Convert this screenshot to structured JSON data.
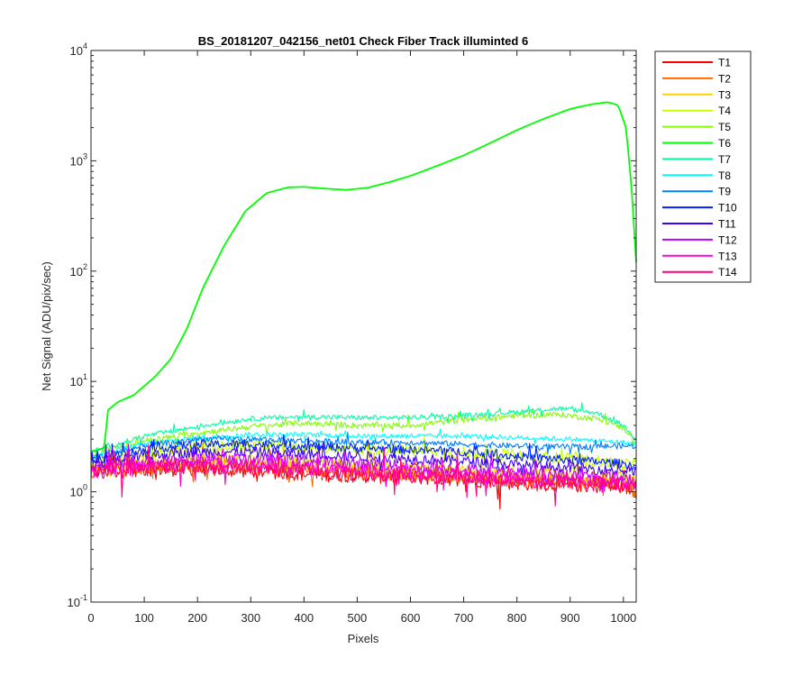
{
  "chart_data": {
    "type": "line",
    "title": "BS_20181207_042156_net01    Check Fiber      Track illuminted 6",
    "xlabel": "Pixels",
    "ylabel": "Net Signal (ADU/pix/sec)",
    "xlim": [
      0,
      1024
    ],
    "ylim": [
      0.1,
      10000
    ],
    "yscale": "log",
    "grid": false,
    "legend_position": "outside-right",
    "x_ticks": [
      0,
      100,
      200,
      300,
      400,
      500,
      600,
      700,
      800,
      900,
      1000
    ],
    "x_tick_labels": [
      "0",
      "100",
      "200",
      "300",
      "400",
      "500",
      "600",
      "700",
      "800",
      "900",
      "1000"
    ],
    "y_ticks": [
      0.1,
      1,
      10,
      100,
      1000,
      10000
    ],
    "y_tick_labels": [
      {
        "base": "10",
        "exp": "-1"
      },
      {
        "base": "10",
        "exp": "0"
      },
      {
        "base": "10",
        "exp": "1"
      },
      {
        "base": "10",
        "exp": "2"
      },
      {
        "base": "10",
        "exp": "3"
      },
      {
        "base": "10",
        "exp": "4"
      }
    ],
    "series": [
      {
        "name": "T1",
        "color": "#ff0000",
        "noise": 0.3,
        "points": [
          [
            0,
            1.5
          ],
          [
            100,
            1.6
          ],
          [
            200,
            1.6
          ],
          [
            300,
            1.55
          ],
          [
            400,
            1.45
          ],
          [
            500,
            1.4
          ],
          [
            600,
            1.35
          ],
          [
            700,
            1.3
          ],
          [
            800,
            1.2
          ],
          [
            900,
            1.15
          ],
          [
            1000,
            1.1
          ],
          [
            1024,
            1.0
          ]
        ]
      },
      {
        "name": "T2",
        "color": "#ff6a00",
        "noise": 0.3,
        "points": [
          [
            0,
            1.55
          ],
          [
            100,
            1.7
          ],
          [
            200,
            1.75
          ],
          [
            300,
            1.7
          ],
          [
            400,
            1.6
          ],
          [
            500,
            1.5
          ],
          [
            600,
            1.45
          ],
          [
            700,
            1.4
          ],
          [
            800,
            1.3
          ],
          [
            900,
            1.25
          ],
          [
            1000,
            1.2
          ],
          [
            1024,
            1.0
          ]
        ]
      },
      {
        "name": "T3",
        "color": "#ffd000",
        "noise": 0.28,
        "points": [
          [
            0,
            1.65
          ],
          [
            100,
            1.85
          ],
          [
            200,
            1.95
          ],
          [
            300,
            1.9
          ],
          [
            400,
            1.8
          ],
          [
            500,
            1.7
          ],
          [
            600,
            1.6
          ],
          [
            700,
            1.55
          ],
          [
            800,
            1.45
          ],
          [
            900,
            1.4
          ],
          [
            1000,
            1.35
          ],
          [
            1024,
            1.3
          ]
        ]
      },
      {
        "name": "T4",
        "color": "#c8ff00",
        "noise": 0.25,
        "points": [
          [
            0,
            1.8
          ],
          [
            100,
            2.2
          ],
          [
            200,
            2.5
          ],
          [
            300,
            2.6
          ],
          [
            400,
            2.55
          ],
          [
            500,
            2.45
          ],
          [
            600,
            2.35
          ],
          [
            700,
            2.25
          ],
          [
            800,
            2.15
          ],
          [
            900,
            2.0
          ],
          [
            1000,
            1.8
          ],
          [
            1024,
            1.75
          ]
        ]
      },
      {
        "name": "T5",
        "color": "#7fff00",
        "noise": 0.12,
        "points": [
          [
            0,
            2.2
          ],
          [
            100,
            2.9
          ],
          [
            200,
            3.4
          ],
          [
            300,
            3.9
          ],
          [
            400,
            4.2
          ],
          [
            500,
            4.0
          ],
          [
            600,
            4.0
          ],
          [
            700,
            4.5
          ],
          [
            800,
            4.9
          ],
          [
            880,
            5.0
          ],
          [
            950,
            4.6
          ],
          [
            1000,
            3.8
          ],
          [
            1024,
            2.9
          ]
        ]
      },
      {
        "name": "T6",
        "color": "#00ff00",
        "noise": 0.0,
        "points": [
          [
            0,
            2.3
          ],
          [
            25,
            2.5
          ],
          [
            32,
            5.5
          ],
          [
            50,
            6.5
          ],
          [
            80,
            7.5
          ],
          [
            120,
            11
          ],
          [
            150,
            16
          ],
          [
            180,
            30
          ],
          [
            210,
            70
          ],
          [
            250,
            170
          ],
          [
            290,
            350
          ],
          [
            330,
            510
          ],
          [
            370,
            575
          ],
          [
            400,
            580
          ],
          [
            440,
            560
          ],
          [
            480,
            545
          ],
          [
            520,
            570
          ],
          [
            560,
            640
          ],
          [
            600,
            730
          ],
          [
            650,
            900
          ],
          [
            700,
            1120
          ],
          [
            750,
            1450
          ],
          [
            800,
            1900
          ],
          [
            850,
            2400
          ],
          [
            900,
            2950
          ],
          [
            940,
            3250
          ],
          [
            970,
            3400
          ],
          [
            990,
            3200
          ],
          [
            1005,
            2000
          ],
          [
            1015,
            600
          ],
          [
            1024,
            120
          ]
        ]
      },
      {
        "name": "T7",
        "color": "#00ffa0",
        "noise": 0.1,
        "points": [
          [
            0,
            2.3
          ],
          [
            100,
            3.2
          ],
          [
            200,
            3.9
          ],
          [
            300,
            4.6
          ],
          [
            400,
            4.8
          ],
          [
            500,
            4.7
          ],
          [
            600,
            4.7
          ],
          [
            700,
            4.9
          ],
          [
            800,
            5.3
          ],
          [
            880,
            5.7
          ],
          [
            950,
            5.2
          ],
          [
            1000,
            4.0
          ],
          [
            1024,
            3.0
          ]
        ]
      },
      {
        "name": "T8",
        "color": "#00ffff",
        "noise": 0.1,
        "points": [
          [
            0,
            2.1
          ],
          [
            100,
            2.7
          ],
          [
            200,
            3.1
          ],
          [
            300,
            3.3
          ],
          [
            400,
            3.3
          ],
          [
            500,
            3.2
          ],
          [
            600,
            3.2
          ],
          [
            700,
            3.2
          ],
          [
            800,
            3.1
          ],
          [
            900,
            3.0
          ],
          [
            1000,
            2.8
          ],
          [
            1024,
            2.7
          ]
        ]
      },
      {
        "name": "T9",
        "color": "#0080ff",
        "noise": 0.12,
        "points": [
          [
            0,
            2.0
          ],
          [
            100,
            2.6
          ],
          [
            200,
            3.0
          ],
          [
            300,
            3.0
          ],
          [
            400,
            2.9
          ],
          [
            500,
            2.8
          ],
          [
            600,
            2.8
          ],
          [
            700,
            2.7
          ],
          [
            800,
            2.6
          ],
          [
            900,
            2.55
          ],
          [
            1000,
            2.6
          ],
          [
            1024,
            2.6
          ]
        ]
      },
      {
        "name": "T10",
        "color": "#0020ff",
        "noise": 0.18,
        "points": [
          [
            0,
            1.9
          ],
          [
            100,
            2.4
          ],
          [
            200,
            2.7
          ],
          [
            300,
            2.7
          ],
          [
            400,
            2.6
          ],
          [
            500,
            2.5
          ],
          [
            600,
            2.4
          ],
          [
            700,
            2.3
          ],
          [
            800,
            2.1
          ],
          [
            900,
            1.95
          ],
          [
            1000,
            1.8
          ],
          [
            1024,
            1.7
          ]
        ]
      },
      {
        "name": "T11",
        "color": "#4000ff",
        "noise": 0.22,
        "points": [
          [
            0,
            1.75
          ],
          [
            100,
            2.1
          ],
          [
            200,
            2.3
          ],
          [
            300,
            2.3
          ],
          [
            400,
            2.2
          ],
          [
            500,
            2.1
          ],
          [
            600,
            2.0
          ],
          [
            700,
            1.9
          ],
          [
            800,
            1.75
          ],
          [
            900,
            1.65
          ],
          [
            1000,
            1.55
          ],
          [
            1024,
            1.5
          ]
        ]
      },
      {
        "name": "T12",
        "color": "#c000ff",
        "noise": 0.25,
        "points": [
          [
            0,
            1.65
          ],
          [
            100,
            1.9
          ],
          [
            200,
            2.0
          ],
          [
            300,
            2.0
          ],
          [
            400,
            1.9
          ],
          [
            500,
            1.8
          ],
          [
            600,
            1.7
          ],
          [
            700,
            1.6
          ],
          [
            800,
            1.5
          ],
          [
            900,
            1.4
          ],
          [
            1000,
            1.35
          ],
          [
            1024,
            1.3
          ]
        ]
      },
      {
        "name": "T13",
        "color": "#ff00d0",
        "noise": 0.28,
        "points": [
          [
            0,
            1.55
          ],
          [
            100,
            1.75
          ],
          [
            200,
            1.8
          ],
          [
            300,
            1.75
          ],
          [
            400,
            1.65
          ],
          [
            500,
            1.55
          ],
          [
            600,
            1.5
          ],
          [
            700,
            1.4
          ],
          [
            800,
            1.3
          ],
          [
            900,
            1.25
          ],
          [
            1000,
            1.2
          ],
          [
            1024,
            1.15
          ]
        ]
      },
      {
        "name": "T14",
        "color": "#ff0080",
        "noise": 0.3,
        "points": [
          [
            0,
            1.5
          ],
          [
            100,
            1.65
          ],
          [
            200,
            1.7
          ],
          [
            300,
            1.65
          ],
          [
            400,
            1.55
          ],
          [
            500,
            1.45
          ],
          [
            600,
            1.4
          ],
          [
            700,
            1.35
          ],
          [
            800,
            1.25
          ],
          [
            900,
            1.2
          ],
          [
            1000,
            1.15
          ],
          [
            1024,
            1.1
          ]
        ]
      }
    ]
  }
}
